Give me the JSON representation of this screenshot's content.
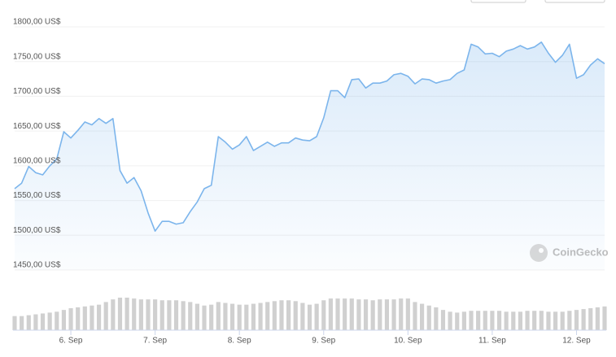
{
  "chart_data": {
    "type": "line",
    "watermark": "CoinGecko",
    "color": "#7cb5ec",
    "xlim": [
      0,
      84
    ],
    "xticks": [
      {
        "value": 8,
        "label": "6. Sep"
      },
      {
        "value": 20,
        "label": "7. Sep"
      },
      {
        "value": 32,
        "label": "8. Sep"
      },
      {
        "value": 44,
        "label": "9. Sep"
      },
      {
        "value": 56,
        "label": "10. Sep"
      },
      {
        "value": 68,
        "label": "11. Sep"
      },
      {
        "value": 80,
        "label": "12. Sep"
      }
    ],
    "ylim": [
      1450,
      1800
    ],
    "yticks": [
      {
        "value": 1450,
        "label": "1450,00 US$"
      },
      {
        "value": 1500,
        "label": "1500,00 US$"
      },
      {
        "value": 1550,
        "label": "1550,00 US$"
      },
      {
        "value": 1600,
        "label": "1600,00 US$"
      },
      {
        "value": 1650,
        "label": "1650,00 US$"
      },
      {
        "value": 1700,
        "label": "1700,00 US$"
      },
      {
        "value": 1750,
        "label": "1750,00 US$"
      },
      {
        "value": 1800,
        "label": "1800,00 US$"
      }
    ],
    "grid": true,
    "values": [
      1567,
      1575,
      1599,
      1590,
      1587,
      1600,
      1610,
      1649,
      1640,
      1651,
      1663,
      1659,
      1668,
      1661,
      1668,
      1593,
      1575,
      1583,
      1564,
      1532,
      1506,
      1520,
      1520,
      1516,
      1518,
      1534,
      1548,
      1567,
      1572,
      1642,
      1634,
      1624,
      1630,
      1642,
      1622,
      1628,
      1634,
      1628,
      1633,
      1633,
      1640,
      1637,
      1636,
      1642,
      1669,
      1708,
      1708,
      1698,
      1724,
      1725,
      1712,
      1719,
      1719,
      1722,
      1731,
      1733,
      1729,
      1718,
      1725,
      1724,
      1719,
      1722,
      1724,
      1733,
      1738,
      1775,
      1771,
      1761,
      1762,
      1757,
      1765,
      1768,
      1773,
      1768,
      1771,
      1778,
      1762,
      1749,
      1759,
      1775,
      1726,
      1731,
      1745,
      1754,
      1747
    ],
    "volume": {
      "color": "#d0d0d0",
      "values": [
        16,
        16,
        17,
        18,
        19,
        20,
        21,
        23,
        25,
        26,
        27,
        28,
        29,
        32,
        35,
        37,
        37,
        36,
        35,
        35,
        35,
        34,
        34,
        34,
        33,
        32,
        30,
        28,
        29,
        32,
        31,
        30,
        29,
        29,
        30,
        31,
        32,
        33,
        34,
        34,
        33,
        31,
        29,
        30,
        34,
        36,
        36,
        36,
        36,
        35,
        35,
        34,
        35,
        35,
        35,
        36,
        36,
        32,
        30,
        28,
        26,
        23,
        21,
        20,
        21,
        22,
        22,
        22,
        22,
        22,
        21,
        21,
        21,
        22,
        22,
        22,
        21,
        21,
        21,
        22,
        23,
        24,
        25,
        26,
        27
      ]
    }
  }
}
